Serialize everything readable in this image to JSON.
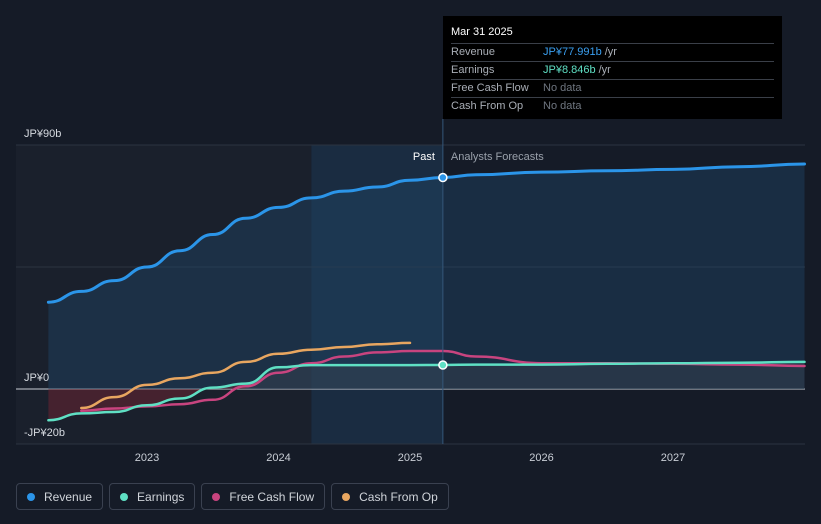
{
  "colors": {
    "revenue": "#2b95e9",
    "earnings": "#5fe0c4",
    "free_cash_flow": "#c8447f",
    "cash_from_op": "#e8a660",
    "background": "#151b27"
  },
  "tooltip": {
    "date": "Mar 31 2025",
    "rows": [
      {
        "label": "Revenue",
        "value": "JP¥77.991b",
        "unit": "/yr",
        "color": "#3a9ff0"
      },
      {
        "label": "Earnings",
        "value": "JP¥8.846b",
        "unit": "/yr",
        "color": "#5fe0c4"
      },
      {
        "label": "Free Cash Flow",
        "value": "No data",
        "unit": "",
        "color": "#6f7680"
      },
      {
        "label": "Cash From Op",
        "value": "No data",
        "unit": "",
        "color": "#6f7680"
      }
    ]
  },
  "legend": [
    {
      "label": "Revenue",
      "color": "#2b95e9"
    },
    {
      "label": "Earnings",
      "color": "#5fe0c4"
    },
    {
      "label": "Free Cash Flow",
      "color": "#c8447f"
    },
    {
      "label": "Cash From Op",
      "color": "#e8a660"
    }
  ],
  "chart_data": {
    "type": "line",
    "title": "",
    "xlabel": "",
    "ylabel": "",
    "y_tick_labels": [
      "JP¥90b",
      "JP¥0",
      "-JP¥20b"
    ],
    "ylim": [
      -20,
      90
    ],
    "xlim": [
      2022.3,
      2028.0
    ],
    "x_ticks": [
      2023,
      2024,
      2025,
      2026,
      2027
    ],
    "x_tick_labels": [
      "2023",
      "2024",
      "2025",
      "2026",
      "2027"
    ],
    "past_label": "Past",
    "forecast_label": "Analysts Forecasts",
    "divider_x": 2025.25,
    "forecast_region_start": 2024.25,
    "grid": true,
    "legend_position": "bottom",
    "series": [
      {
        "name": "Revenue",
        "x": [
          2022.25,
          2022.5,
          2022.75,
          2023.0,
          2023.25,
          2023.5,
          2023.75,
          2024.0,
          2024.25,
          2024.5,
          2024.75,
          2025.0,
          2025.25,
          2025.5,
          2026.0,
          2026.5,
          2027.0,
          2027.5,
          2028.0
        ],
        "y": [
          32,
          36,
          40,
          45,
          51,
          57,
          63,
          67,
          70.5,
          73,
          74.5,
          77,
          78,
          79,
          80,
          80.5,
          81,
          82,
          83
        ]
      },
      {
        "name": "Earnings",
        "x": [
          2022.25,
          2022.5,
          2022.75,
          2023.0,
          2023.25,
          2023.5,
          2023.75,
          2024.0,
          2024.25,
          2024.5,
          2024.75,
          2025.0,
          2025.25,
          2025.5,
          2026.0,
          2026.5,
          2027.0,
          2027.5,
          2028.0
        ],
        "y": [
          -11.5,
          -9,
          -8.5,
          -6,
          -3.5,
          0.5,
          2,
          8,
          8.8,
          8.8,
          8.8,
          8.8,
          8.846,
          9,
          9,
          9.3,
          9.5,
          9.7,
          10
        ]
      },
      {
        "name": "Free Cash Flow",
        "x": [
          2022.5,
          2022.75,
          2023.0,
          2023.25,
          2023.5,
          2023.75,
          2024.0,
          2024.25,
          2024.5,
          2024.75,
          2025.0,
          2025.25,
          2025.5,
          2026.0,
          2026.5,
          2027.0,
          2027.5,
          2028.0
        ],
        "y": [
          -8,
          -7.2,
          -6.4,
          -5.6,
          -4,
          1,
          6,
          9.5,
          12,
          13.5,
          14,
          14,
          12,
          9.5,
          9.5,
          9.3,
          9,
          8.5
        ]
      },
      {
        "name": "Cash From Op",
        "x": [
          2022.5,
          2022.75,
          2023.0,
          2023.25,
          2023.5,
          2023.75,
          2024.0,
          2024.25,
          2024.5,
          2024.75,
          2025.0
        ],
        "y": [
          -7,
          -3,
          1.5,
          4,
          6,
          10,
          13,
          14.5,
          15.5,
          16.5,
          17
        ]
      }
    ]
  }
}
